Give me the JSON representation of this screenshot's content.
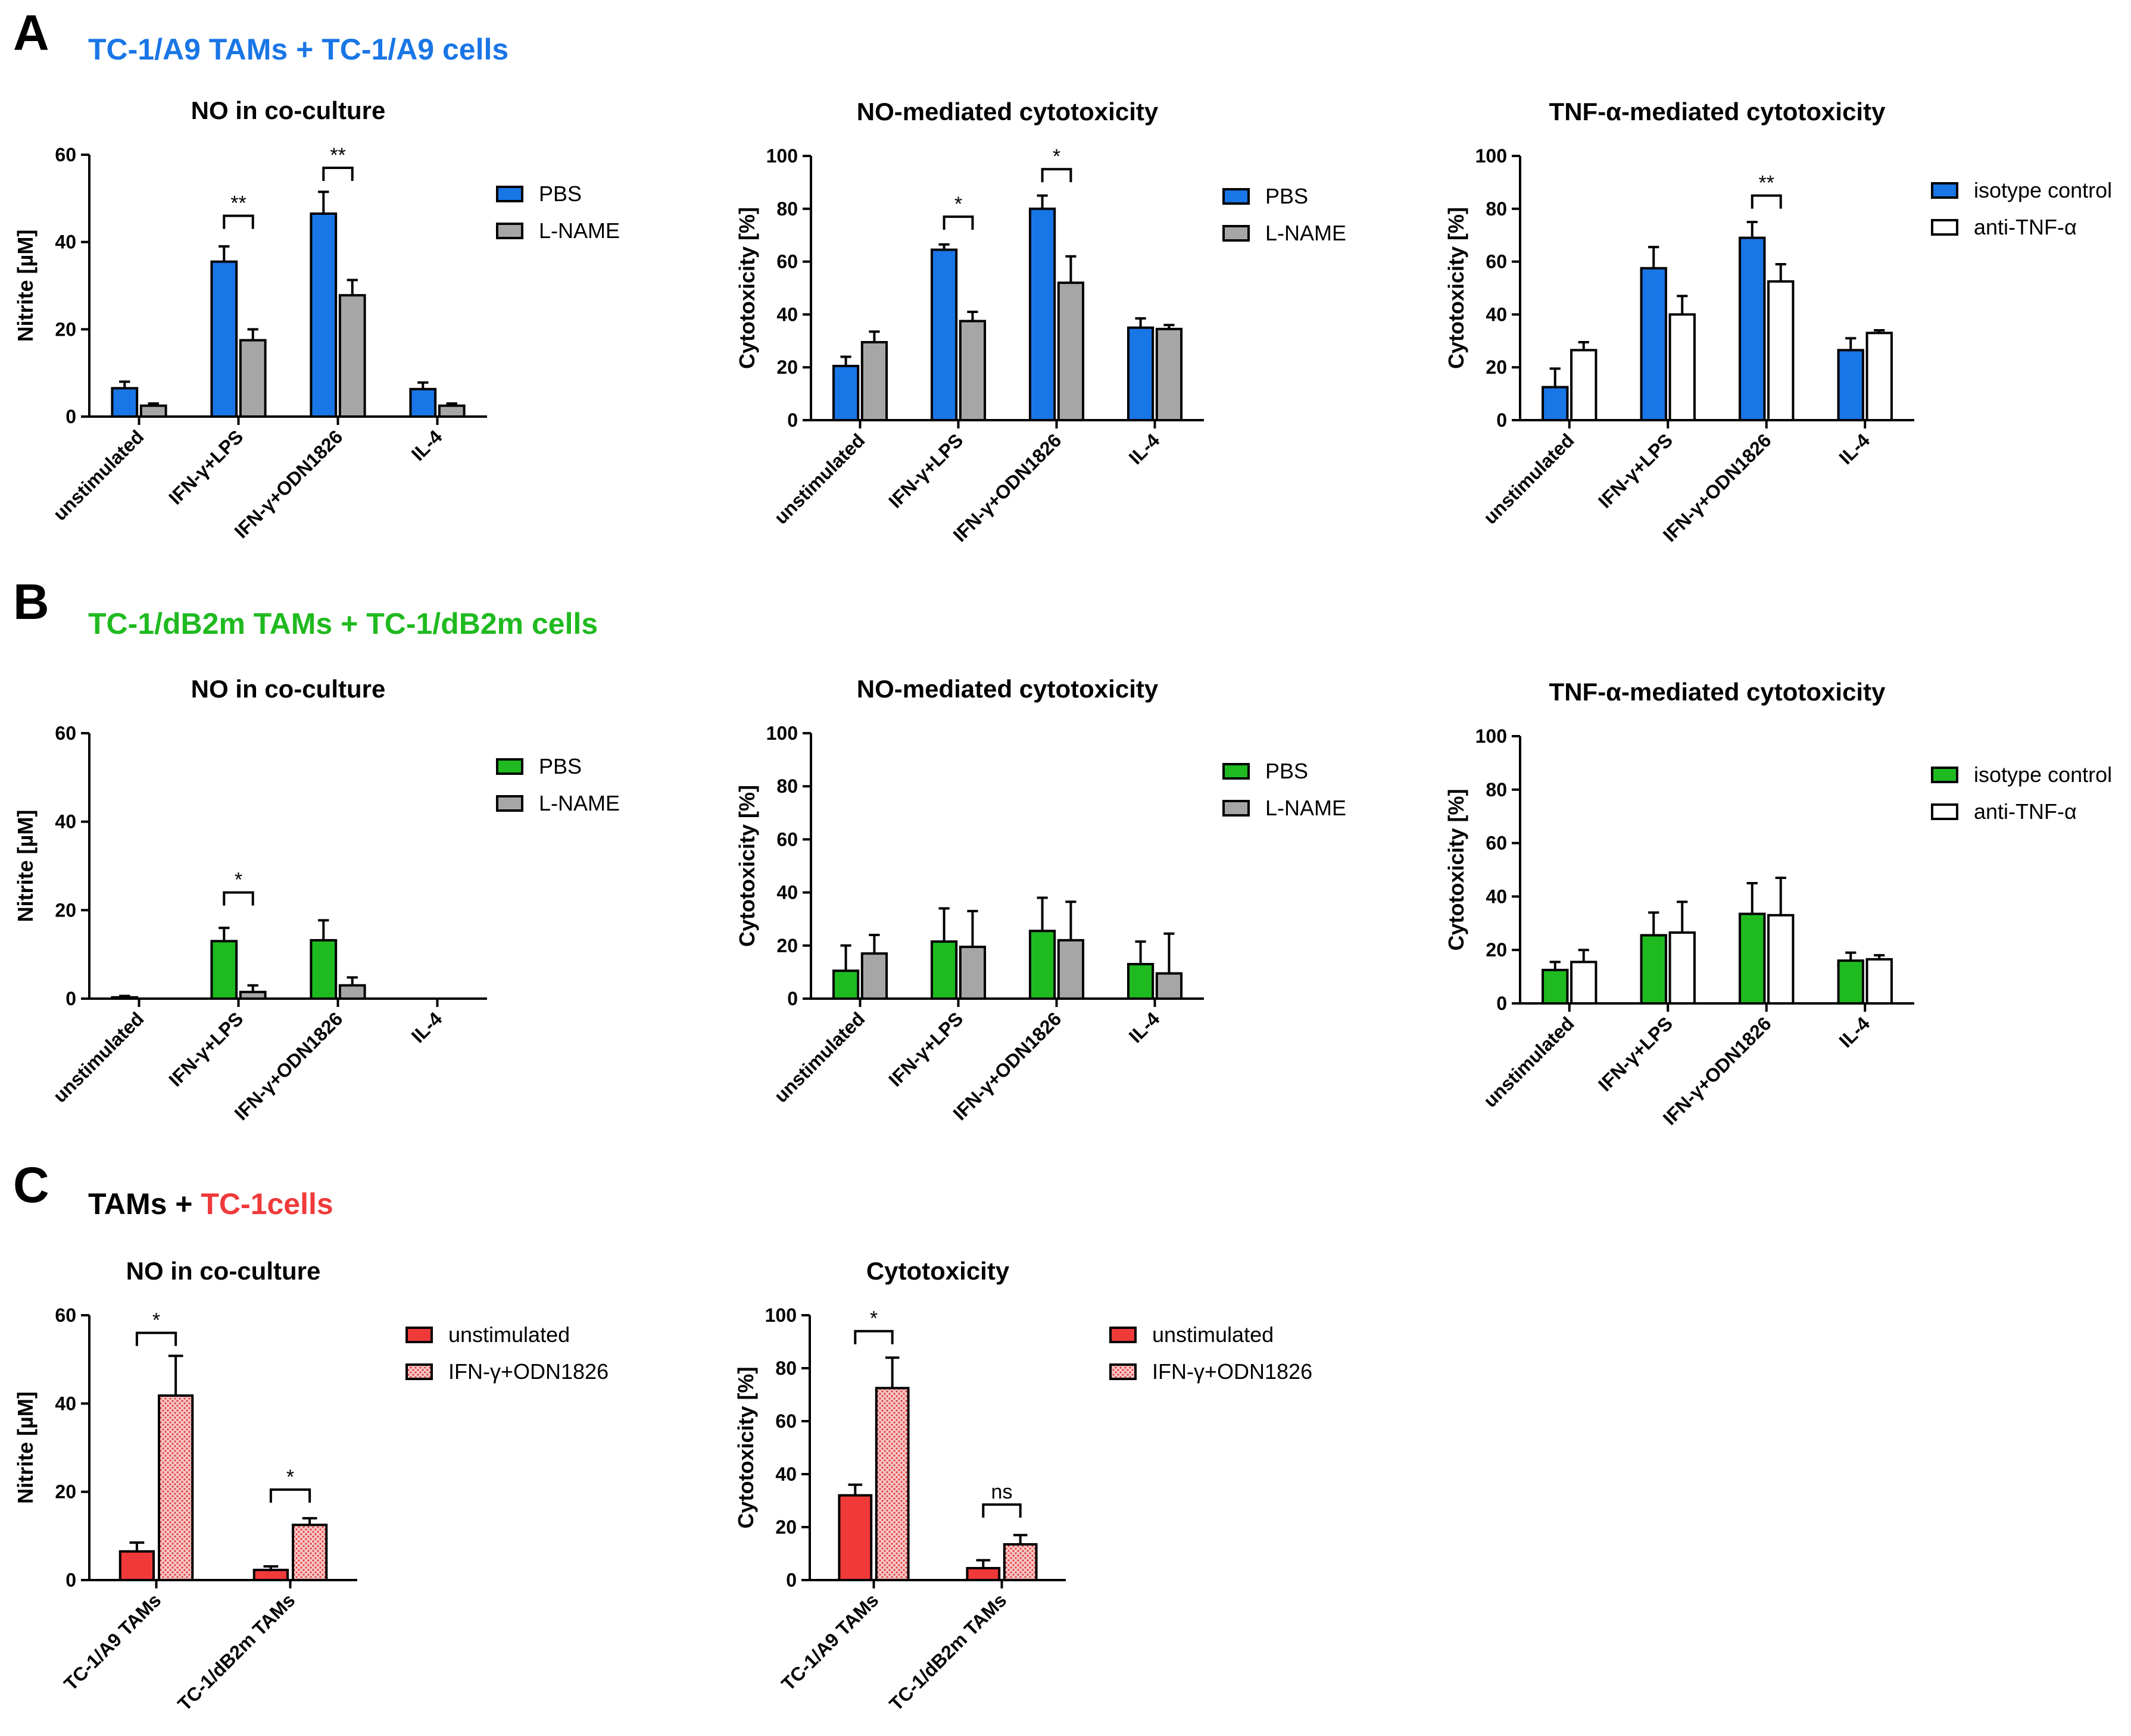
{
  "colors": {
    "blue": "#1976e6",
    "green": "#1fba1f",
    "red": "#f03a3a",
    "gray": "#a6a6a6",
    "white": "#ffffff",
    "pink_pattern": "#f6c8c8"
  },
  "panels": [
    {
      "letter": "A",
      "title": "TC-1/A9 TAMs + TC-1/A9 cells",
      "title_color": "#1976e6"
    },
    {
      "letter": "B",
      "title": "TC-1/dB2m TAMs + TC-1/dB2m cells",
      "title_color": "#1fba1f"
    },
    {
      "letter": "C",
      "title_parts": [
        "TAMs + ",
        "TC-1cells"
      ],
      "title_colors": [
        "#000000",
        "#f03a3a"
      ]
    }
  ],
  "chart_data": [
    {
      "panel": "A",
      "type": "bar",
      "title": "NO in co-culture",
      "ylabel": "Nitrite [µM]",
      "ylim": [
        0,
        60
      ],
      "yticks": [
        0,
        20,
        40,
        60
      ],
      "categories": [
        "unstimulated",
        "IFN-γ+LPS",
        "IFN-γ+ODN1826",
        "IL-4"
      ],
      "series": [
        {
          "name": "PBS",
          "fill": "#1976e6",
          "values": [
            6.5,
            35.5,
            46.5,
            6.3
          ],
          "errors": [
            1.5,
            3.5,
            5,
            1.5
          ]
        },
        {
          "name": "L-NAME",
          "fill": "#a6a6a6",
          "values": [
            2.5,
            17.5,
            27.8,
            2.5
          ],
          "errors": [
            0.5,
            2.5,
            3.5,
            0.5
          ]
        }
      ],
      "significance": [
        {
          "category": 1,
          "label": "**",
          "y": 46
        },
        {
          "category": 2,
          "label": "**",
          "y": 57
        }
      ]
    },
    {
      "panel": "A",
      "type": "bar",
      "title": "NO-mediated cytotoxicity",
      "ylabel": "Cytotoxicity [%]",
      "ylim": [
        0,
        100
      ],
      "yticks": [
        0,
        20,
        40,
        60,
        80,
        100
      ],
      "categories": [
        "unstimulated",
        "IFN-γ+LPS",
        "IFN-γ+ODN1826",
        "IL-4"
      ],
      "series": [
        {
          "name": "PBS",
          "fill": "#1976e6",
          "values": [
            20.5,
            64.5,
            80,
            35
          ],
          "errors": [
            3.5,
            2,
            5,
            3.5
          ]
        },
        {
          "name": "L-NAME",
          "fill": "#a6a6a6",
          "values": [
            29.5,
            37.5,
            52,
            34.5
          ],
          "errors": [
            4,
            3.5,
            10,
            1.5
          ]
        }
      ],
      "significance": [
        {
          "category": 1,
          "label": "*",
          "y": 77
        },
        {
          "category": 2,
          "label": "*",
          "y": 95
        }
      ]
    },
    {
      "panel": "A",
      "type": "bar",
      "title": "TNF-α-mediated cytotoxicity",
      "ylabel": "Cytotoxicity [%]",
      "ylim": [
        0,
        100
      ],
      "yticks": [
        0,
        20,
        40,
        60,
        80,
        100
      ],
      "categories": [
        "unstimulated",
        "IFN-γ+LPS",
        "IFN-γ+ODN1826",
        "IL-4"
      ],
      "series": [
        {
          "name": "isotype control",
          "fill": "#1976e6",
          "values": [
            12.5,
            57.5,
            69,
            26.5
          ],
          "errors": [
            7,
            8,
            6,
            4.5
          ]
        },
        {
          "name": "anti-TNF-α",
          "fill": "#ffffff",
          "values": [
            26.5,
            40,
            52.5,
            33
          ],
          "errors": [
            3,
            7,
            6.5,
            1
          ]
        }
      ],
      "significance": [
        {
          "category": 2,
          "label": "**",
          "y": 85
        }
      ]
    },
    {
      "panel": "B",
      "type": "bar",
      "title": "NO in co-culture",
      "ylabel": "Nitrite [µM]",
      "ylim": [
        0,
        60
      ],
      "yticks": [
        0,
        20,
        40,
        60
      ],
      "categories": [
        "unstimulated",
        "IFN-γ+LPS",
        "IFN-γ+ODN1826",
        "IL-4"
      ],
      "series": [
        {
          "name": "PBS",
          "fill": "#1fba1f",
          "values": [
            0.3,
            13,
            13.2,
            0
          ],
          "errors": [
            0.3,
            3,
            4.5,
            0
          ]
        },
        {
          "name": "L-NAME",
          "fill": "#a6a6a6",
          "values": [
            0,
            1.5,
            3,
            0
          ],
          "errors": [
            0,
            1.5,
            1.8,
            0
          ]
        }
      ],
      "significance": [
        {
          "category": 1,
          "label": "*",
          "y": 24
        }
      ]
    },
    {
      "panel": "B",
      "type": "bar",
      "title": "NO-mediated cytotoxicity",
      "ylabel": "Cytotoxicity [%]",
      "ylim": [
        0,
        100
      ],
      "yticks": [
        0,
        20,
        40,
        60,
        80,
        100
      ],
      "categories": [
        "unstimulated",
        "IFN-γ+LPS",
        "IFN-γ+ODN1826",
        "IL-4"
      ],
      "series": [
        {
          "name": "PBS",
          "fill": "#1fba1f",
          "values": [
            10.5,
            21.5,
            25.5,
            13
          ],
          "errors": [
            9.5,
            12.5,
            12.5,
            8.5
          ]
        },
        {
          "name": "L-NAME",
          "fill": "#a6a6a6",
          "values": [
            17,
            19.5,
            22,
            9.5
          ],
          "errors": [
            7,
            13.5,
            14.5,
            15
          ]
        }
      ],
      "significance": []
    },
    {
      "panel": "B",
      "type": "bar",
      "title": "TNF-α-mediated cytotoxicity",
      "ylabel": "Cytotoxicity [%]",
      "ylim": [
        0,
        100
      ],
      "yticks": [
        0,
        20,
        40,
        60,
        80,
        100
      ],
      "categories": [
        "unstimulated",
        "IFN-γ+LPS",
        "IFN-γ+ODN1826",
        "IL-4"
      ],
      "series": [
        {
          "name": "isotype control",
          "fill": "#1fba1f",
          "values": [
            12.5,
            25.5,
            33.5,
            16
          ],
          "errors": [
            3,
            8.5,
            11.5,
            3
          ]
        },
        {
          "name": "anti-TNF-α",
          "fill": "#ffffff",
          "values": [
            15.5,
            26.5,
            33,
            16.5
          ],
          "errors": [
            4.5,
            11.5,
            14,
            1.5
          ]
        }
      ],
      "significance": []
    },
    {
      "panel": "C",
      "type": "bar",
      "title": "NO in co-culture",
      "ylabel": "Nitrite [µM]",
      "ylim": [
        0,
        60
      ],
      "yticks": [
        0,
        20,
        40,
        60
      ],
      "categories": [
        "TC-1/A9 TAMs",
        "TC-1/dB2m TAMs"
      ],
      "series": [
        {
          "name": "unstimulated",
          "fill": "#f03a3a",
          "pattern": false,
          "values": [
            6.5,
            2.3
          ],
          "errors": [
            2,
            0.8
          ]
        },
        {
          "name": "IFN-γ+ODN1826",
          "fill": "#f6c8c8",
          "pattern": true,
          "values": [
            41.8,
            12.5
          ],
          "errors": [
            9,
            1.5
          ]
        }
      ],
      "significance": [
        {
          "category": 0,
          "label": "*",
          "y": 56
        },
        {
          "category": 1,
          "label": "*",
          "y": 20.5
        }
      ]
    },
    {
      "panel": "C",
      "type": "bar",
      "title": "Cytotoxicity",
      "ylabel": "Cytotoxicity [%]",
      "ylim": [
        0,
        100
      ],
      "yticks": [
        0,
        20,
        40,
        60,
        80,
        100
      ],
      "categories": [
        "TC-1/A9 TAMs",
        "TC-1/dB2m TAMs"
      ],
      "series": [
        {
          "name": "unstimulated",
          "fill": "#f03a3a",
          "pattern": false,
          "values": [
            32,
            4.5
          ],
          "errors": [
            4,
            3
          ]
        },
        {
          "name": "IFN-γ+ODN1826",
          "fill": "#f6c8c8",
          "pattern": true,
          "values": [
            72.5,
            13.5
          ],
          "errors": [
            11.5,
            3.5
          ]
        }
      ],
      "significance": [
        {
          "category": 0,
          "label": "*",
          "y": 94
        },
        {
          "category": 1,
          "label": "ns",
          "y": 28.5
        }
      ]
    }
  ]
}
